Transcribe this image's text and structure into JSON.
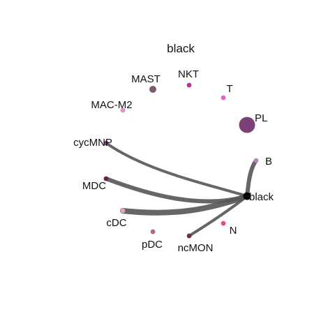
{
  "title": "black",
  "edge_color": "#555555",
  "hub": {
    "name": "black",
    "color": "#000000"
  },
  "nodes": [
    {
      "id": "MAST",
      "label": "MAST",
      "color": "#7a5b72",
      "size": "medium"
    },
    {
      "id": "NKT",
      "label": "NKT",
      "color": "#b5319a",
      "size": "small"
    },
    {
      "id": "T",
      "label": "T",
      "color": "#e85ccb",
      "size": "small"
    },
    {
      "id": "PL",
      "label": "PL",
      "color": "#7b4179",
      "size": "large"
    },
    {
      "id": "B",
      "label": "B",
      "color": "#b288b6",
      "size": "small"
    },
    {
      "id": "MAC-M2",
      "label": "MAC-M2",
      "color": "#e08fd0",
      "size": "small"
    },
    {
      "id": "cycMNP",
      "label": "cycMNP",
      "color": "#8a3a78",
      "size": "small"
    },
    {
      "id": "MDC",
      "label": "MDC",
      "color": "#6a1f4d",
      "size": "small"
    },
    {
      "id": "cDC",
      "label": "cDC",
      "color": "#e6a2cf",
      "size": "small"
    },
    {
      "id": "pDC",
      "label": "pDC",
      "color": "#b66487",
      "size": "small"
    },
    {
      "id": "ncMON",
      "label": "ncMON",
      "color": "#6b2e4a",
      "size": "small"
    },
    {
      "id": "N",
      "label": "N",
      "color": "#e8458e",
      "size": "small"
    }
  ],
  "edges": [
    {
      "from": "B",
      "to": "black",
      "weight": 2
    },
    {
      "from": "cycMNP",
      "to": "black",
      "weight": 1
    },
    {
      "from": "MDC",
      "to": "black",
      "weight": 2
    },
    {
      "from": "cDC",
      "to": "black",
      "weight": 3
    },
    {
      "from": "ncMON",
      "to": "black",
      "weight": 1
    }
  ]
}
